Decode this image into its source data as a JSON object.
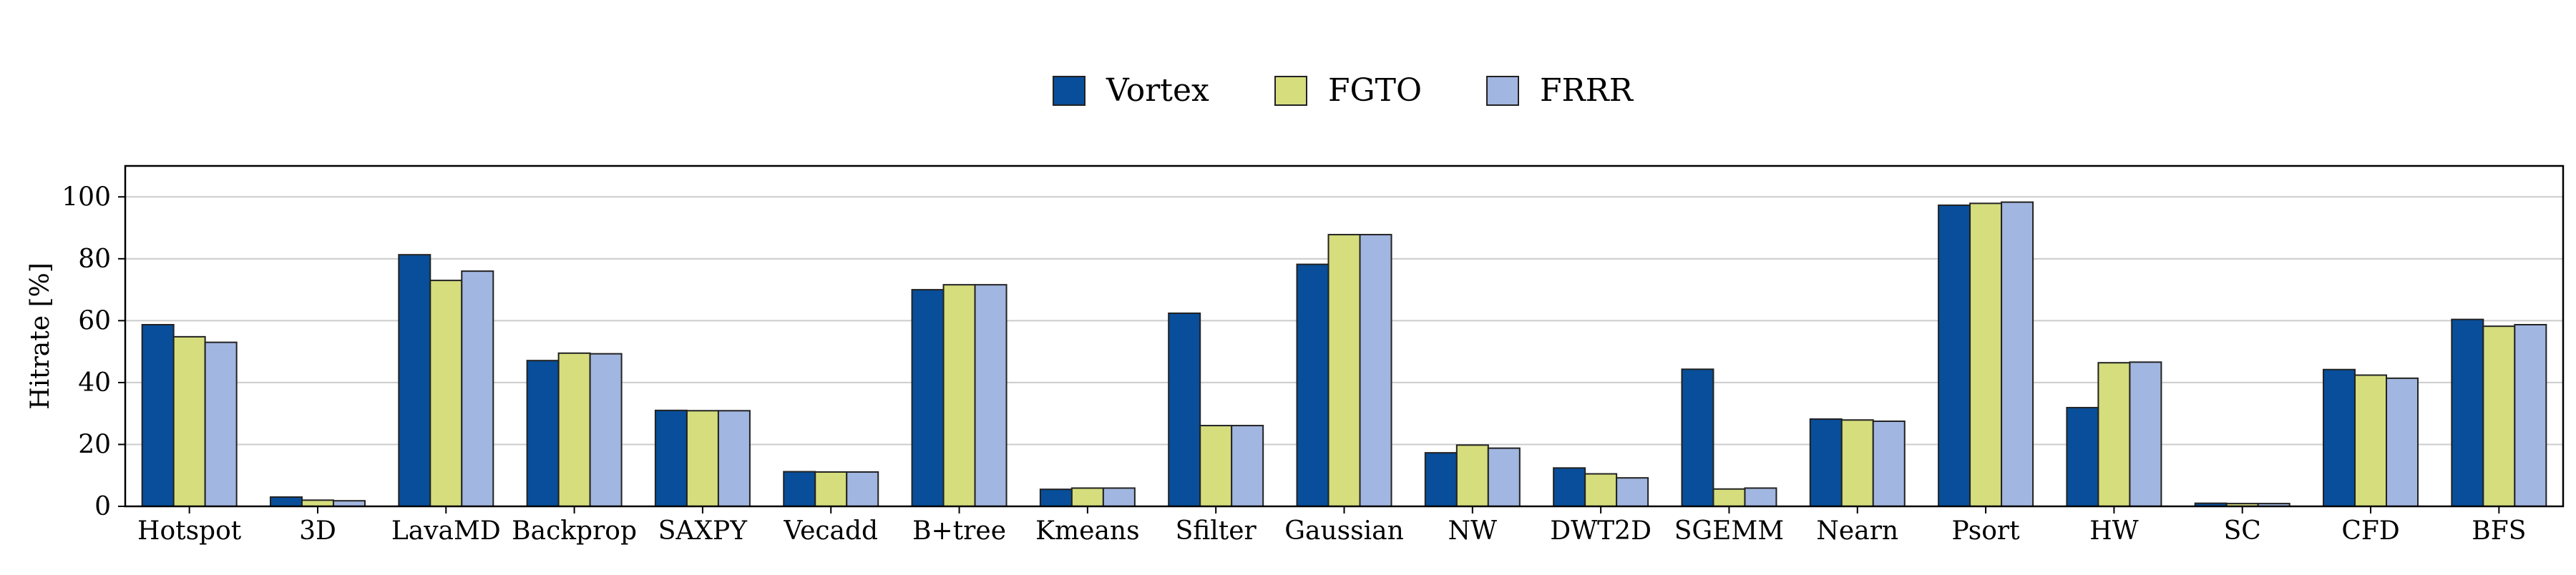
{
  "chart_data": {
    "type": "bar",
    "ylabel": "Hitrate [%]",
    "xlabel": "",
    "ylim": [
      0,
      110
    ],
    "yticks": [
      0,
      20,
      40,
      60,
      80,
      100
    ],
    "grid": true,
    "legend_position": "top-center",
    "categories": [
      "Hotspot",
      "3D",
      "LavaMD",
      "Backprop",
      "SAXPY",
      "Vecadd",
      "B+tree",
      "Kmeans",
      "Sfilter",
      "Gaussian",
      "NW",
      "DWT2D",
      "SGEMM",
      "Nearn",
      "Psort",
      "HW",
      "SC",
      "CFD",
      "BFS"
    ],
    "series": [
      {
        "name": "Vortex",
        "color": "#084e9a",
        "values": [
          58.7,
          3.0,
          81.3,
          47.1,
          31.0,
          11.2,
          70.0,
          5.5,
          62.4,
          78.2,
          17.3,
          12.4,
          44.3,
          28.2,
          97.3,
          31.9,
          1.0,
          44.2,
          60.4
        ]
      },
      {
        "name": "FGTO",
        "color": "#d5dd7d",
        "values": [
          54.8,
          2.0,
          73.0,
          49.5,
          30.9,
          11.1,
          71.6,
          5.9,
          26.1,
          87.8,
          19.8,
          10.5,
          5.6,
          27.9,
          97.9,
          46.4,
          0.9,
          42.4,
          58.2
        ]
      },
      {
        "name": "FRRR",
        "color": "#a1b6e0",
        "values": [
          53.0,
          1.8,
          76.0,
          49.3,
          30.9,
          11.1,
          71.6,
          5.9,
          26.1,
          87.8,
          18.8,
          9.2,
          5.9,
          27.5,
          98.3,
          46.6,
          0.9,
          41.4,
          58.7
        ]
      }
    ]
  }
}
